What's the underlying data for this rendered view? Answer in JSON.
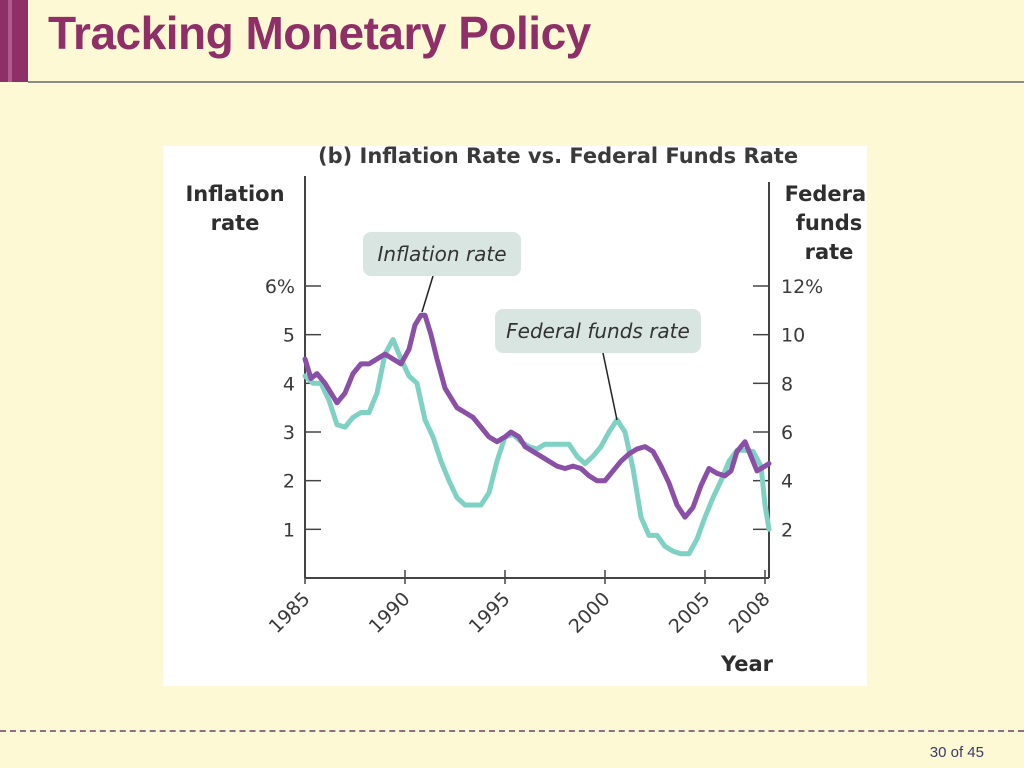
{
  "slide": {
    "title": "Tracking Monetary Policy",
    "page_number": "30 of 45"
  },
  "colors": {
    "title": "#8e2f67",
    "inflation": "#8a4fa6",
    "fedfunds": "#7fd2c3",
    "background": "#fdf9d4"
  },
  "chart_data": {
    "type": "line",
    "title": "(b) Inflation Rate vs. Federal Funds Rate",
    "xlabel": "Year",
    "ylabel_left": [
      "Inflation",
      "rate"
    ],
    "ylabel_right": [
      "Federal",
      "funds",
      "rate"
    ],
    "xlim": [
      1985,
      2008.2
    ],
    "ylim_left": [
      0,
      6
    ],
    "ylim_right": [
      0,
      12
    ],
    "x_ticks": [
      "1985",
      "1990",
      "1995",
      "2000",
      "2005",
      "2008"
    ],
    "y_ticks_left": [
      "1",
      "2",
      "3",
      "4",
      "5",
      "6%"
    ],
    "y_ticks_right": [
      "2",
      "4",
      "6",
      "8",
      "10",
      "12%"
    ],
    "grid": false,
    "annotations": [
      {
        "label": "Inflation rate",
        "series": "Inflation rate"
      },
      {
        "label": "Federal funds rate",
        "series": "Federal funds rate"
      }
    ],
    "series": [
      {
        "name": "Inflation rate",
        "axis": "left",
        "x": [
          1985,
          1985.3,
          1985.6,
          1986,
          1986.3,
          1986.6,
          1987,
          1987.4,
          1987.8,
          1988.2,
          1988.6,
          1989,
          1989.4,
          1989.8,
          1990.2,
          1990.5,
          1990.8,
          1991,
          1991.3,
          1991.6,
          1992,
          1992.3,
          1992.6,
          1993,
          1993.4,
          1993.8,
          1994.2,
          1994.6,
          1995,
          1995.3,
          1995.7,
          1996,
          1996.4,
          1996.8,
          1997.2,
          1997.6,
          1998,
          1998.4,
          1998.8,
          1999.2,
          1999.6,
          2000,
          2000.4,
          2000.8,
          2001.2,
          2001.6,
          2002,
          2002.4,
          2002.8,
          2003.2,
          2003.6,
          2004,
          2004.4,
          2004.8,
          2005.2,
          2005.6,
          2006,
          2006.3,
          2006.6,
          2007,
          2007.3,
          2007.6,
          2008,
          2008.2
        ],
        "values": [
          4.5,
          4.1,
          4.2,
          4.0,
          3.8,
          3.6,
          3.8,
          4.2,
          4.4,
          4.4,
          4.5,
          4.6,
          4.5,
          4.4,
          4.7,
          5.2,
          5.4,
          5.4,
          5.0,
          4.5,
          3.9,
          3.7,
          3.5,
          3.4,
          3.3,
          3.1,
          2.9,
          2.8,
          2.9,
          3.0,
          2.9,
          2.7,
          2.6,
          2.5,
          2.4,
          2.3,
          2.25,
          2.3,
          2.25,
          2.1,
          2.0,
          2.0,
          2.2,
          2.4,
          2.55,
          2.65,
          2.7,
          2.6,
          2.3,
          1.95,
          1.5,
          1.25,
          1.45,
          1.9,
          2.25,
          2.15,
          2.1,
          2.2,
          2.6,
          2.8,
          2.5,
          2.2,
          2.3,
          2.35
        ]
      },
      {
        "name": "Federal funds rate",
        "axis": "right",
        "x": [
          1985,
          1985.4,
          1985.8,
          1986.2,
          1986.6,
          1987,
          1987.4,
          1987.8,
          1988.2,
          1988.6,
          1989,
          1989.4,
          1989.8,
          1990.2,
          1990.6,
          1991,
          1991.4,
          1991.8,
          1992.2,
          1992.6,
          1993,
          1993.4,
          1993.8,
          1994.2,
          1994.6,
          1995,
          1995.4,
          1995.8,
          1996.2,
          1996.6,
          1997,
          1997.4,
          1997.8,
          1998.2,
          1998.6,
          1999,
          1999.4,
          1999.8,
          2000.2,
          2000.6,
          2001,
          2001.4,
          2001.8,
          2002.2,
          2002.6,
          2003,
          2003.4,
          2003.8,
          2004.2,
          2004.6,
          2005,
          2005.4,
          2005.8,
          2006.2,
          2006.6,
          2007,
          2007.4,
          2007.8,
          2008,
          2008.2
        ],
        "values": [
          8.3,
          8.0,
          8.0,
          7.3,
          6.3,
          6.2,
          6.6,
          6.8,
          6.8,
          7.6,
          9.2,
          9.8,
          9.0,
          8.3,
          8.0,
          6.5,
          5.8,
          4.8,
          4.0,
          3.3,
          3.0,
          3.0,
          3.0,
          3.5,
          4.8,
          5.8,
          5.9,
          5.6,
          5.4,
          5.3,
          5.5,
          5.5,
          5.5,
          5.5,
          5.0,
          4.7,
          5.0,
          5.4,
          6.0,
          6.5,
          6.0,
          4.5,
          2.5,
          1.75,
          1.75,
          1.3,
          1.1,
          1.0,
          1.0,
          1.6,
          2.5,
          3.3,
          4.0,
          4.8,
          5.25,
          5.25,
          5.2,
          4.6,
          3.0,
          2.0
        ]
      }
    ]
  }
}
